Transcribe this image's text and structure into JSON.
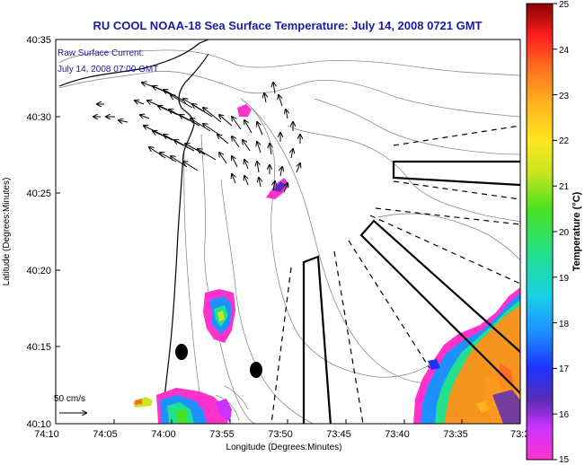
{
  "title": "RU COOL  NOAA-18  Sea Surface Temperature:  July 14, 2008 0721 GMT",
  "current_legend": {
    "line1": "Raw Surface Current:",
    "line2": "July 14, 2008 07:00 GMT"
  },
  "scale_arrow_label": "50 cm/s",
  "y_axis": {
    "label": "Latitude (Degrees:Minutes)",
    "ticks": [
      "40:35",
      "40:30",
      "40:25",
      "40:20",
      "40:15",
      "40:10"
    ]
  },
  "x_axis": {
    "label": "Longitude (Degrees:Minutes)",
    "ticks": [
      "74:10",
      "74:05",
      "74:00",
      "73:55",
      "73:50",
      "73:45",
      "73:40",
      "73:35",
      "73:3"
    ]
  },
  "colorbar": {
    "label": "Temperature (°C)",
    "ticks": [
      "25",
      "24",
      "23",
      "22",
      "21",
      "20",
      "19",
      "18",
      "17",
      "16",
      "15"
    ],
    "min": 15,
    "max": 25
  },
  "colors": {
    "title": "#1a1aa6",
    "legend_text": "#1a1aa6",
    "warm_sst": "#f5941e",
    "cool_sst": "#1e90ff"
  }
}
